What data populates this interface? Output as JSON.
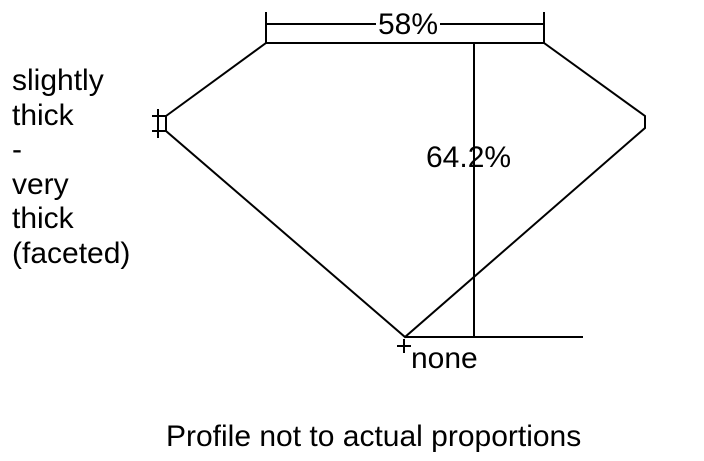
{
  "labels": {
    "table_width": "58%",
    "total_depth": "64.2%",
    "girdle": [
      "slightly",
      "thick",
      "-",
      "very",
      "thick",
      "(faceted)"
    ],
    "culet": "none",
    "note": "Profile not to actual proportions"
  }
}
